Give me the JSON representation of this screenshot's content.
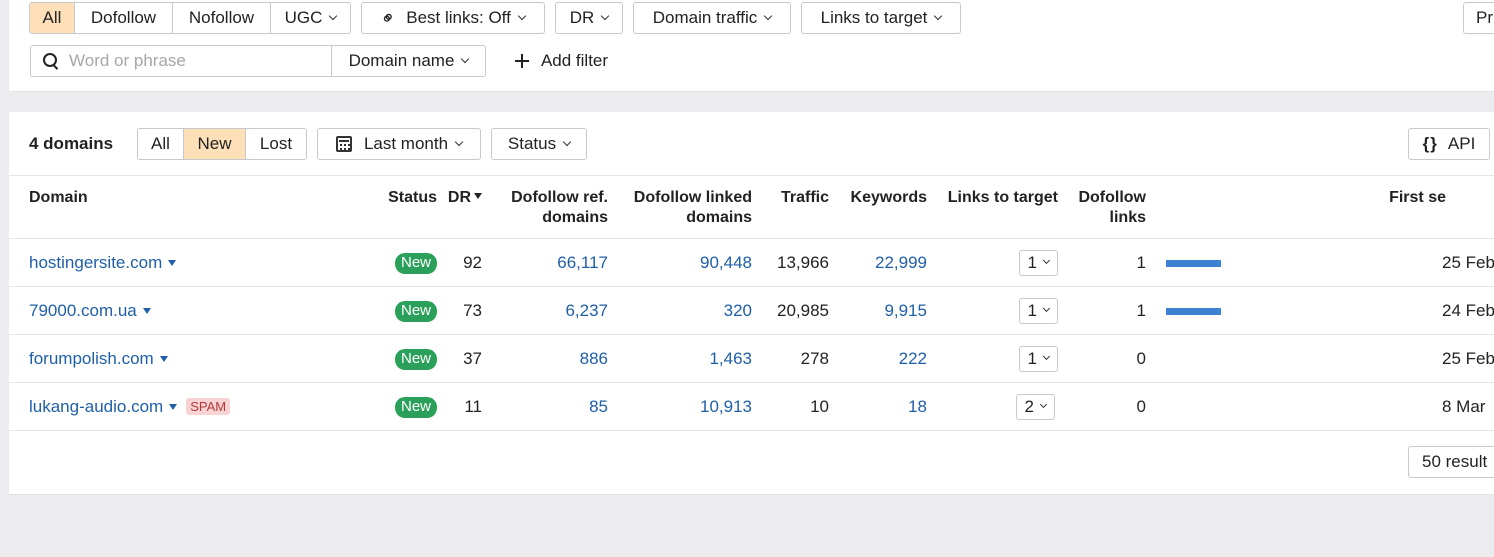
{
  "filters": {
    "link_types": [
      "All",
      "Dofollow",
      "Nofollow",
      "UGC"
    ],
    "link_types_active": "All",
    "best_links": "Best links: Off",
    "dr": "DR",
    "domain_traffic": "Domain traffic",
    "links_to_target": "Links to target",
    "right_btn": "Pr",
    "search_placeholder": "Word or phrase",
    "domain_name": "Domain name",
    "add_filter": "Add filter"
  },
  "toolbar": {
    "count_label": "4 domains",
    "tabs": [
      "All",
      "New",
      "Lost"
    ],
    "tabs_active": "New",
    "period": "Last month",
    "status": "Status",
    "api": "API"
  },
  "table": {
    "headers": {
      "domain": "Domain",
      "status": "Status",
      "dr": "DR",
      "dofollow_ref_domains": [
        "Dofollow ref.",
        "domains"
      ],
      "dofollow_linked_domains": [
        "Dofollow linked",
        "domains"
      ],
      "traffic": "Traffic",
      "keywords": "Keywords",
      "links_to_target": "Links to target",
      "dofollow_links": [
        "Dofollow",
        "links"
      ],
      "first_seen": "First se"
    },
    "rows": [
      {
        "domain": "hostingersite.com",
        "spam": "",
        "status": "New",
        "dr": "92",
        "ref": "66,117",
        "linked": "90,448",
        "traffic": "13,966",
        "keywords": "22,999",
        "links": "1",
        "dofollow": "1",
        "bar_fraction": 1.0,
        "first_seen": "25 Feb"
      },
      {
        "domain": "79000.com.ua",
        "spam": "",
        "status": "New",
        "dr": "73",
        "ref": "6,237",
        "linked": "320",
        "traffic": "20,985",
        "keywords": "9,915",
        "links": "1",
        "dofollow": "1",
        "bar_fraction": 1.0,
        "first_seen": "24 Feb"
      },
      {
        "domain": "forumpolish.com",
        "spam": "",
        "status": "New",
        "dr": "37",
        "ref": "886",
        "linked": "1,463",
        "traffic": "278",
        "keywords": "222",
        "links": "1",
        "dofollow": "0",
        "bar_fraction": 0,
        "first_seen": "25 Feb"
      },
      {
        "domain": "lukang-audio.com",
        "spam": "SPAM",
        "status": "New",
        "dr": "11",
        "ref": "85",
        "linked": "10,913",
        "traffic": "10",
        "keywords": "18",
        "links": "2",
        "dofollow": "0",
        "bar_fraction": 0,
        "first_seen": "8 Mar"
      }
    ]
  },
  "pagination": {
    "per_page": "50 result"
  },
  "colors": {
    "accent_active": "#fde0b8",
    "link": "#1f5fa8",
    "badge_new": "#2aa05a",
    "bar": "#3b82d0"
  }
}
